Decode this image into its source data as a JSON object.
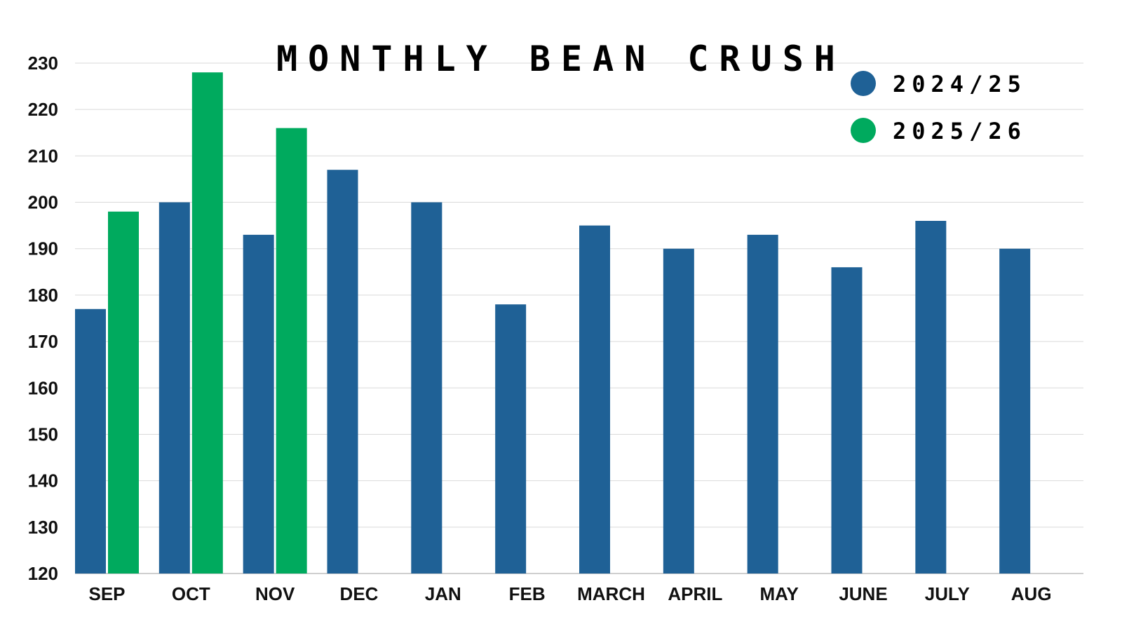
{
  "chart_data": {
    "type": "bar",
    "title": "MONTHLY BEAN CRUSH",
    "xlabel": "",
    "ylabel": "",
    "ylim": [
      120,
      230
    ],
    "yticks": [
      120,
      130,
      140,
      150,
      160,
      170,
      180,
      190,
      200,
      210,
      220,
      230
    ],
    "grid": true,
    "legend_placement": "top-right",
    "categories": [
      "SEP",
      "OCT",
      "NOV",
      "DEC",
      "JAN",
      "FEB",
      "MARCH",
      "APRIL",
      "MAY",
      "JUNE",
      "JULY",
      "AUG"
    ],
    "series": [
      {
        "name": "2024/25",
        "color": "#1f6196",
        "values": [
          177,
          200,
          193,
          207,
          200,
          178,
          195,
          190,
          193,
          186,
          196,
          190
        ]
      },
      {
        "name": "2025/26",
        "color": "#00aa5e",
        "values": [
          198,
          228,
          216,
          null,
          null,
          null,
          null,
          null,
          null,
          null,
          null,
          null
        ]
      }
    ]
  }
}
